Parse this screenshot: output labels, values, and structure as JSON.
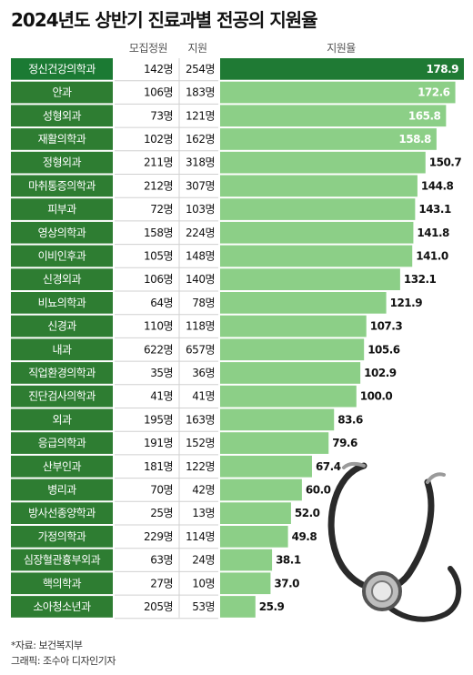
{
  "title": "2024년도 상반기 진료과별 전공의 지원율",
  "columns": {
    "recruit": "모집정원",
    "apply": "지원",
    "rate": "지원율"
  },
  "colors": {
    "category_bg": "#2e7d32",
    "row_top_bg": "#1b7a33",
    "bar_top": "#1f7a34",
    "bar": "#8ccf87",
    "number_bg": "#ffffff"
  },
  "chart_data": {
    "type": "bar",
    "orientation": "horizontal",
    "title": "2024년도 상반기 진료과별 전공의 지원율",
    "categories": [
      "정신건강의학과",
      "안과",
      "성형외과",
      "재활의학과",
      "정형외과",
      "마취통증의학과",
      "피부과",
      "영상의학과",
      "이비인후과",
      "신경외과",
      "비뇨의학과",
      "신경과",
      "내과",
      "직업환경의학과",
      "진단검사의학과",
      "외과",
      "응급의학과",
      "산부인과",
      "병리과",
      "방사선종양학과",
      "가정의학과",
      "심장혈관흉부외과",
      "핵의학과",
      "소아청소년과"
    ],
    "recruit": [
      "142명",
      "106명",
      "73명",
      "102명",
      "211명",
      "212명",
      "72명",
      "158명",
      "105명",
      "106명",
      "64명",
      "110명",
      "622명",
      "35명",
      "41명",
      "195명",
      "191명",
      "181명",
      "70명",
      "25명",
      "229명",
      "63명",
      "27명",
      "205명"
    ],
    "apply": [
      "254명",
      "183명",
      "121명",
      "162명",
      "318명",
      "307명",
      "103명",
      "224명",
      "148명",
      "140명",
      "78명",
      "118명",
      "657명",
      "36명",
      "41명",
      "163명",
      "152명",
      "122명",
      "42명",
      "13명",
      "114명",
      "24명",
      "10명",
      "53명"
    ],
    "values": [
      178.9,
      172.6,
      165.8,
      158.8,
      150.7,
      144.8,
      143.1,
      141.8,
      141.0,
      132.1,
      121.9,
      107.3,
      105.6,
      102.9,
      100.0,
      83.6,
      79.6,
      67.4,
      60.0,
      52.0,
      49.8,
      38.1,
      37.0,
      25.9
    ],
    "value_labels": [
      "178.9",
      "172.6",
      "165.8",
      "158.8",
      "150.7",
      "144.8",
      "143.1",
      "141.8",
      "141.0",
      "132.1",
      "121.9",
      "107.3",
      "105.6",
      "102.9",
      "100.0",
      "83.6",
      "79.6",
      "67.4",
      "60.0",
      "52.0",
      "49.8",
      "38.1",
      "37.0",
      "25.9"
    ],
    "xlim": [
      0,
      178.9
    ]
  },
  "footer": {
    "source": "*자료: 보건복지부",
    "credit": "그래픽: 조수아 디자인기자"
  }
}
